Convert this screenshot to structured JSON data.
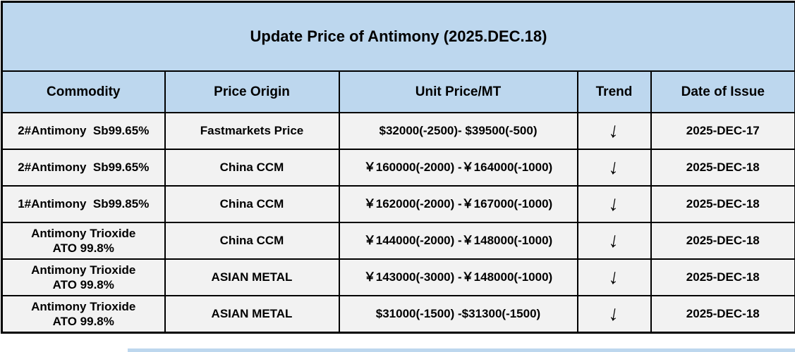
{
  "title": "Update Price of Antimony (2025.DEC.18)",
  "columns": {
    "commodity": "Commodity",
    "origin": "Price Origin",
    "price": "Unit Price/MT",
    "trend": "Trend",
    "date": "Date of Issue"
  },
  "rows": [
    {
      "commodity": "2#Antimony  Sb99.65%",
      "origin": "Fastmarkets Price",
      "price": "$32000(-2500)- $39500(-500)",
      "trend": "↓",
      "date": "2025-DEC-17"
    },
    {
      "commodity": "2#Antimony  Sb99.65%",
      "origin": "China CCM",
      "price": "￥160000(-2000) -￥164000(-1000)",
      "trend": "↓",
      "date": "2025-DEC-18"
    },
    {
      "commodity": "1#Antimony  Sb99.85%",
      "origin": "China CCM",
      "price": "￥162000(-2000) -￥167000(-1000)",
      "trend": "↓",
      "date": "2025-DEC-18"
    },
    {
      "commodity": "Antimony Trioxide\nATO 99.8%",
      "origin": "China CCM",
      "price": "￥144000(-2000) -￥148000(-1000)",
      "trend": "↓",
      "date": "2025-DEC-18"
    },
    {
      "commodity": "Antimony Trioxide\nATO 99.8%",
      "origin": "ASIAN METAL",
      "price": "￥143000(-3000) -￥148000(-1000)",
      "trend": "↓",
      "date": "2025-DEC-18"
    },
    {
      "commodity": "Antimony Trioxide\nATO 99.8%",
      "origin": "ASIAN METAL",
      "price": "$31000(-1500) -$31300(-1500)",
      "trend": "↓",
      "date": "2025-DEC-18"
    }
  ],
  "colors": {
    "header_bg": "#BDD7EE",
    "row_bg": "#F2F2F2",
    "border": "#000000",
    "text": "#000000"
  }
}
